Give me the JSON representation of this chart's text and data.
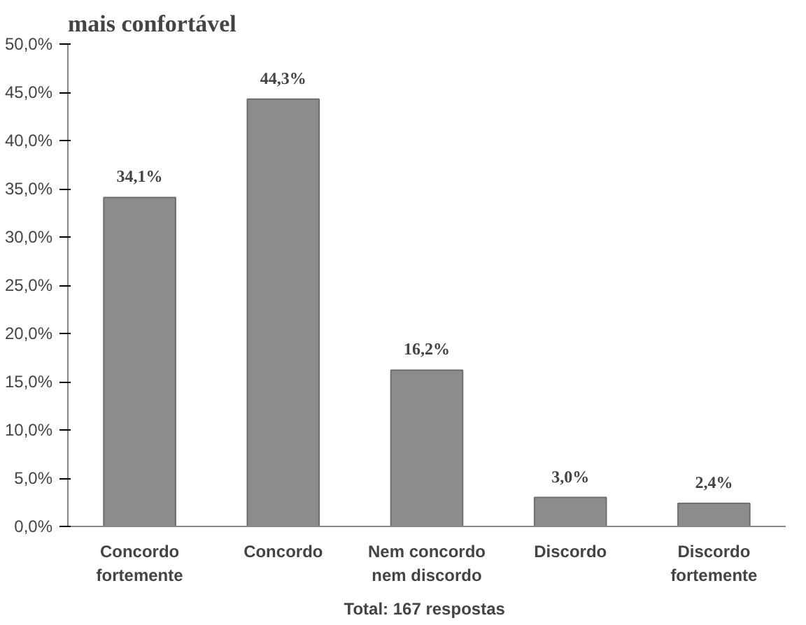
{
  "chart_data": {
    "type": "bar",
    "title": "mais confortável",
    "categories": [
      "Concordo\nfortemente",
      "Concordo",
      "Nem concordo\nnem discordo",
      "Discordo",
      "Discordo\nfortemente"
    ],
    "values": [
      34.1,
      44.3,
      16.2,
      3.0,
      2.4
    ],
    "value_labels": [
      "34,1%",
      "44,3%",
      "16,2%",
      "3,0%",
      "2,4%"
    ],
    "color": "#8c8c8c",
    "ylim": [
      0,
      50
    ],
    "yticks": [
      {
        "value": 0,
        "label": "0,0%"
      },
      {
        "value": 5,
        "label": "5,0%"
      },
      {
        "value": 10,
        "label": "10,0%"
      },
      {
        "value": 15,
        "label": "15,0%"
      },
      {
        "value": 20,
        "label": "20,0%"
      },
      {
        "value": 25,
        "label": "25,0%"
      },
      {
        "value": 30,
        "label": "30,0%"
      },
      {
        "value": 35,
        "label": "35,0%"
      },
      {
        "value": 40,
        "label": "40,0%"
      },
      {
        "value": 45,
        "label": "45,0%"
      },
      {
        "value": 50,
        "label": "50,0%"
      }
    ],
    "annotations": [
      "Total:  167 respostas"
    ],
    "grid": false
  }
}
